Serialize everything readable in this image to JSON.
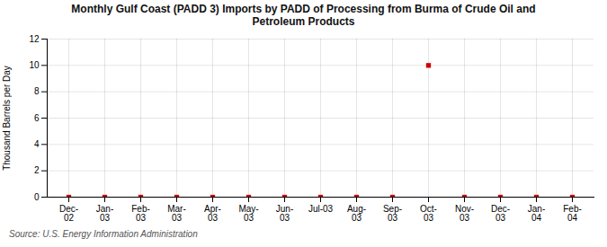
{
  "chart_data": {
    "type": "scatter",
    "title": "Monthly Gulf Coast (PADD 3) Imports by PADD of Processing from Burma of Crude Oil and\nPetroleum Products",
    "y_label": "Thousand Barrels per Day",
    "source": "Source: U.S. Energy Information Administration",
    "categories": [
      "Dec-\n02",
      "Jan-\n03",
      "Feb-\n03",
      "Mar-\n03",
      "Apr-\n03",
      "May-\n03",
      "Jun-\n03",
      "Jul-03",
      "Aug-\n03",
      "Sep-\n03",
      "Oct-\n03",
      "Nov-\n03",
      "Dec-\n03",
      "Jan-\n04",
      "Feb-\n04"
    ],
    "values": [
      0,
      0,
      0,
      0,
      0,
      0,
      0,
      0,
      0,
      0,
      10,
      0,
      0,
      0,
      0
    ],
    "color": "#cc0000",
    "marker": "square",
    "ylim": [
      0,
      12
    ],
    "yticks": [
      0,
      2,
      4,
      6,
      8,
      10,
      12
    ],
    "grid": true
  }
}
